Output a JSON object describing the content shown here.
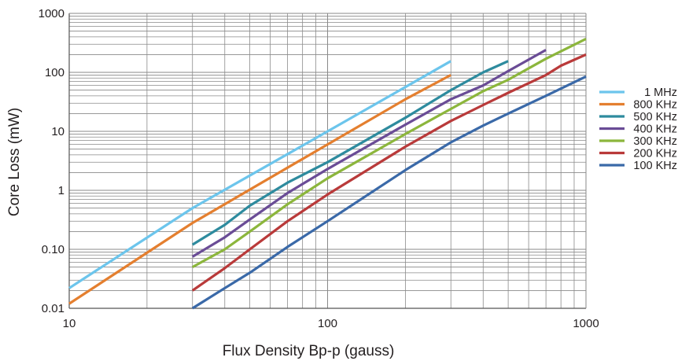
{
  "chart_data": {
    "type": "line",
    "xlabel": "Flux Density Bp-p (gauss)",
    "ylabel": "Core Loss (mW)",
    "x_scale": "log",
    "y_scale": "log",
    "xlim": [
      10,
      1000
    ],
    "ylim": [
      0.01,
      1000
    ],
    "x_ticks": [
      {
        "value": 10,
        "label": "10"
      },
      {
        "value": 100,
        "label": "100"
      },
      {
        "value": 1000,
        "label": "1000"
      }
    ],
    "y_ticks": [
      {
        "value": 0.01,
        "label": "0.01"
      },
      {
        "value": 0.1,
        "label": "0.10"
      },
      {
        "value": 1,
        "label": "1"
      },
      {
        "value": 10,
        "label": "10"
      },
      {
        "value": 100,
        "label": "100"
      },
      {
        "value": 1000,
        "label": "1000"
      }
    ],
    "grid": true,
    "legend_position": "right",
    "series": [
      {
        "name": "1 MHz",
        "color": "#6cc5ec",
        "points": [
          [
            10,
            0.022
          ],
          [
            30,
            0.5
          ],
          [
            100,
            10
          ],
          [
            300,
            155
          ]
        ]
      },
      {
        "name": "800 KHz",
        "color": "#e47f2f",
        "points": [
          [
            10,
            0.012
          ],
          [
            30,
            0.28
          ],
          [
            100,
            6
          ],
          [
            200,
            35
          ],
          [
            300,
            90
          ]
        ]
      },
      {
        "name": "500 KHz",
        "color": "#2e8b9e",
        "points": [
          [
            30,
            0.12
          ],
          [
            40,
            0.26
          ],
          [
            50,
            0.55
          ],
          [
            70,
            1.35
          ],
          [
            100,
            3
          ],
          [
            200,
            17
          ],
          [
            300,
            50
          ],
          [
            400,
            100
          ],
          [
            500,
            155
          ]
        ]
      },
      {
        "name": "400 KHz",
        "color": "#6a4c96",
        "points": [
          [
            30,
            0.075
          ],
          [
            40,
            0.16
          ],
          [
            50,
            0.32
          ],
          [
            70,
            0.9
          ],
          [
            100,
            2.3
          ],
          [
            200,
            13
          ],
          [
            300,
            35
          ],
          [
            400,
            60
          ],
          [
            500,
            105
          ],
          [
            700,
            240
          ]
        ]
      },
      {
        "name": "300 KHz",
        "color": "#8cb63c",
        "points": [
          [
            30,
            0.05
          ],
          [
            40,
            0.1
          ],
          [
            50,
            0.2
          ],
          [
            70,
            0.58
          ],
          [
            100,
            1.6
          ],
          [
            200,
            9
          ],
          [
            300,
            24
          ],
          [
            400,
            48
          ],
          [
            500,
            75
          ],
          [
            700,
            170
          ],
          [
            1000,
            370
          ]
        ]
      },
      {
        "name": "200 KHz",
        "color": "#b93a3a",
        "points": [
          [
            30,
            0.02
          ],
          [
            40,
            0.048
          ],
          [
            50,
            0.1
          ],
          [
            70,
            0.3
          ],
          [
            100,
            0.85
          ],
          [
            200,
            5.5
          ],
          [
            300,
            15
          ],
          [
            400,
            28
          ],
          [
            500,
            45
          ],
          [
            700,
            90
          ],
          [
            800,
            130
          ],
          [
            1000,
            200
          ]
        ]
      },
      {
        "name": "100 KHz",
        "color": "#3a69a8",
        "points": [
          [
            30,
            0.01
          ],
          [
            40,
            0.022
          ],
          [
            50,
            0.04
          ],
          [
            70,
            0.11
          ],
          [
            100,
            0.3
          ],
          [
            200,
            2.2
          ],
          [
            300,
            6.5
          ],
          [
            400,
            12.5
          ],
          [
            500,
            20
          ],
          [
            700,
            40
          ],
          [
            1000,
            85
          ]
        ]
      }
    ]
  }
}
